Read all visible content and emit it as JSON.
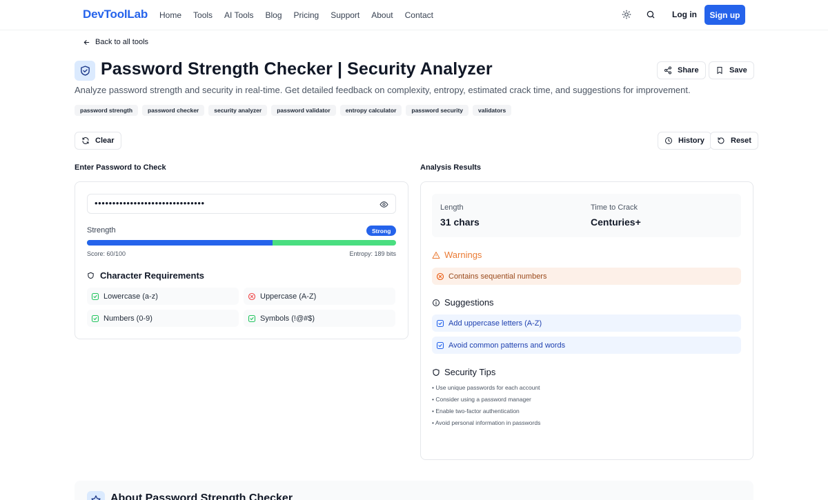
{
  "header": {
    "logo": "DevToolLab",
    "nav": [
      "Home",
      "Tools",
      "AI Tools",
      "Blog",
      "Pricing",
      "Support",
      "About",
      "Contact"
    ],
    "login": "Log in",
    "signup": "Sign up",
    "icons": [
      "sun-icon",
      "search-icon"
    ]
  },
  "back_link": "Back to all tools",
  "page": {
    "title": "Password Strength Checker | Security Analyzer",
    "subtitle": "Analyze password strength and security in real-time. Get detailed feedback on complexity, entropy, estimated crack time, and suggestions for improvement.",
    "share": "Share",
    "save": "Save",
    "tags": [
      "password strength",
      "password checker",
      "security analyzer",
      "password validator",
      "entropy calculator",
      "password security",
      "validators"
    ]
  },
  "toolbar": {
    "clear": "Clear",
    "history": "History",
    "reset": "Reset"
  },
  "input_panel": {
    "label": "Enter Password to Check",
    "password_mask": "•••••••••••••••••••••••••••••••",
    "strength_label": "Strength",
    "strength_badge": "Strong",
    "strength_fraction": 0.6,
    "score": "Score: 60/100",
    "entropy": "Entropy: 189 bits",
    "requirements_title": "Character Requirements",
    "requirements": [
      {
        "label": "Lowercase (a-z)",
        "met": true
      },
      {
        "label": "Uppercase (A-Z)",
        "met": false
      },
      {
        "label": "Numbers (0-9)",
        "met": true
      },
      {
        "label": "Symbols (!@#$)",
        "met": true
      }
    ]
  },
  "results_panel": {
    "label": "Analysis Results",
    "length_label": "Length",
    "length_value": "31 chars",
    "crack_label": "Time to Crack",
    "crack_value": "Centuries+",
    "warnings_title": "Warnings",
    "warnings": [
      "Contains sequential numbers"
    ],
    "suggestions_title": "Suggestions",
    "suggestions": [
      "Add uppercase letters (A-Z)",
      "Avoid common patterns and words"
    ],
    "tips_title": "Security Tips",
    "tips": [
      "• Use unique passwords for each account",
      "• Consider using a password manager",
      "• Enable two-factor authentication",
      "• Avoid personal information in passwords"
    ]
  },
  "about_title": "About Password Strength Checker",
  "colors": {
    "accent": "#2563eb",
    "success": "#4ade80",
    "warning": "#ea7a33",
    "error": "#ef4444"
  }
}
